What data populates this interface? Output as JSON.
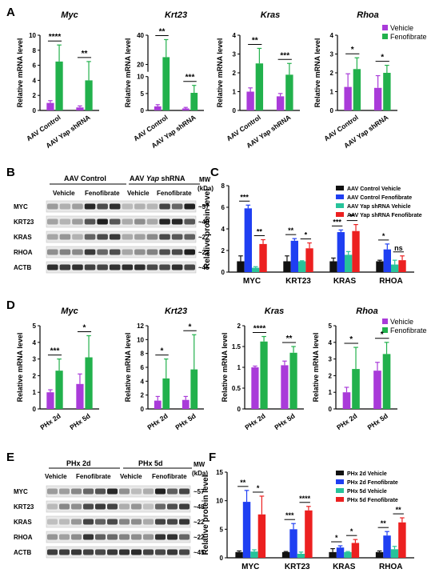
{
  "colors": {
    "vehicle": "#a93bd9",
    "fenofibrate": "#22b14c",
    "black": "#111111",
    "blue": "#1f3ff2",
    "teal": "#27c39a",
    "red": "#ec2020",
    "blot_bg": "#eeeeee"
  },
  "panels": {
    "A": "A",
    "B": "B",
    "C": "C",
    "D": "D",
    "E": "E",
    "F": "F"
  },
  "legend_A": {
    "vehicle": "Vehicle",
    "fenofibrate": "Fenofibrate"
  },
  "legend_D": {
    "vehicle": "Vehicle",
    "fenofibrate": "Fenofibrate"
  },
  "blot_B": {
    "group1": "AAV Control",
    "group2_pre": "AAV ",
    "group2_italic": "Yap",
    "group2_post": " shRNA",
    "lanes": [
      "Vehicle",
      "Fenofibrate",
      "Vehicle",
      "Fenofibrate"
    ],
    "mw": "MW",
    "kda": "(kDa)",
    "rows": [
      {
        "label": "MYC",
        "mw": "~57"
      },
      {
        "label": "KRT23",
        "mw": "~48"
      },
      {
        "label": "KRAS",
        "mw": "~22"
      },
      {
        "label": "RHOA",
        "mw": "~22"
      },
      {
        "label": "ACTB",
        "mw": "~45"
      }
    ]
  },
  "blot_E": {
    "group1": "PHx 2d",
    "group2": "PHx 5d",
    "lanes": [
      "Vehicle",
      "Fenofibrate",
      "Vehicle",
      "Fenofibrate"
    ],
    "mw": "MW",
    "kda": "(kDa)",
    "rows": [
      {
        "label": "MYC",
        "mw": "~57"
      },
      {
        "label": "KRT23",
        "mw": "~48"
      },
      {
        "label": "KRAS",
        "mw": "~22"
      },
      {
        "label": "RHOA",
        "mw": "~22"
      },
      {
        "label": "ACTB",
        "mw": "~45"
      }
    ]
  },
  "chart_data": [
    {
      "panel": "A",
      "type": "bar",
      "title": "Myc",
      "ylabel": "Relative mRNA level",
      "categories": [
        "AAV Control",
        "AAV Yap shRNA"
      ],
      "ylim": [
        0,
        10
      ],
      "yticks": [
        0,
        2,
        4,
        6,
        8,
        10
      ],
      "series": [
        {
          "name": "Vehicle",
          "values": [
            1.0,
            0.4
          ],
          "err": [
            0.3,
            0.2
          ]
        },
        {
          "name": "Fenofibrate",
          "values": [
            6.5,
            4.0
          ],
          "err": [
            2.2,
            2.5
          ]
        }
      ],
      "significance": [
        "****",
        "**"
      ]
    },
    {
      "panel": "A",
      "type": "bar",
      "title": "Krt23",
      "ylabel": "Relative mRNA level",
      "categories": [
        "AAV Control",
        "AAV Yap shRNA"
      ],
      "yticks": [
        0,
        5,
        10,
        20,
        40
      ],
      "axis_break": [
        10,
        15
      ],
      "series": [
        {
          "name": "Vehicle",
          "values": [
            1.2,
            0.6
          ],
          "err": [
            0.5,
            0.3
          ]
        },
        {
          "name": "Fenofibrate",
          "values": [
            25,
            5.2
          ],
          "err": [
            12,
            2.2
          ]
        }
      ],
      "significance": [
        "**",
        "***"
      ]
    },
    {
      "panel": "A",
      "type": "bar",
      "title": "Kras",
      "ylabel": "Relative mRNA level",
      "categories": [
        "AAV Control",
        "AAV Yap shRNA"
      ],
      "ylim": [
        0,
        4
      ],
      "yticks": [
        0,
        1,
        2,
        3,
        4
      ],
      "series": [
        {
          "name": "Vehicle",
          "values": [
            1.0,
            0.75
          ],
          "err": [
            0.2,
            0.15
          ]
        },
        {
          "name": "Fenofibrate",
          "values": [
            2.5,
            1.9
          ],
          "err": [
            0.8,
            0.6
          ]
        }
      ],
      "significance": [
        "**",
        "***"
      ]
    },
    {
      "panel": "A",
      "type": "bar",
      "title": "Rhoa",
      "ylabel": "Relative mRNA level",
      "categories": [
        "AAV Control",
        "AAV Yap shRNA"
      ],
      "ylim": [
        0,
        4
      ],
      "yticks": [
        0,
        1,
        2,
        3,
        4
      ],
      "series": [
        {
          "name": "Vehicle",
          "values": [
            1.25,
            1.2
          ],
          "err": [
            0.7,
            0.65
          ]
        },
        {
          "name": "Fenofibrate",
          "values": [
            2.2,
            2.0
          ],
          "err": [
            0.6,
            0.4
          ]
        }
      ],
      "significance": [
        "*",
        "*"
      ]
    },
    {
      "panel": "C",
      "type": "bar",
      "title": "",
      "ylabel": "Relative protein level",
      "categories": [
        "MYC",
        "KRT23",
        "KRAS",
        "RHOA"
      ],
      "ylim": [
        0,
        8
      ],
      "yticks": [
        0,
        2,
        4,
        6,
        8
      ],
      "series": [
        {
          "name": "AAV Control Vehicle",
          "values": [
            1.0,
            1.0,
            1.0,
            1.0
          ],
          "err": [
            0.5,
            0.5,
            0.3,
            0.1
          ]
        },
        {
          "name": "AAV Control Fenofibrate",
          "values": [
            5.9,
            2.9,
            3.7,
            2.1
          ],
          "err": [
            0.3,
            0.2,
            0.2,
            0.5
          ]
        },
        {
          "name": "AAV Yap shRNA Vehicle",
          "values": [
            0.4,
            1.0,
            1.6,
            0.7
          ],
          "err": [
            0.1,
            0.05,
            0.3,
            0.4
          ]
        },
        {
          "name": "AAV Yap shRNA Fenofibrate",
          "values": [
            2.6,
            2.2,
            3.8,
            1.1
          ],
          "err": [
            0.4,
            0.5,
            0.6,
            0.4
          ]
        }
      ],
      "significance": [
        [
          "***",
          "**"
        ],
        [
          "**",
          "*"
        ],
        [
          "***",
          "**"
        ],
        [
          "*",
          "ns"
        ]
      ]
    },
    {
      "panel": "D",
      "type": "bar",
      "title": "Myc",
      "ylabel": "Relative mRNA level",
      "categories": [
        "PHx 2d",
        "PHx 5d"
      ],
      "ylim": [
        0,
        5
      ],
      "yticks": [
        0,
        1,
        2,
        3,
        4,
        5
      ],
      "series": [
        {
          "name": "Vehicle",
          "values": [
            1.0,
            1.5
          ],
          "err": [
            0.15,
            0.6
          ]
        },
        {
          "name": "Fenofibrate",
          "values": [
            2.3,
            3.1
          ],
          "err": [
            0.7,
            1.3
          ]
        }
      ],
      "significance": [
        "***",
        "*"
      ]
    },
    {
      "panel": "D",
      "type": "bar",
      "title": "Krt23",
      "ylabel": "Relative mRNA level",
      "categories": [
        "PHx 2d",
        "PHx 5d"
      ],
      "ylim": [
        0,
        12
      ],
      "yticks": [
        0,
        2,
        4,
        6,
        8,
        10,
        12
      ],
      "series": [
        {
          "name": "Vehicle",
          "values": [
            1.2,
            1.3
          ],
          "err": [
            0.6,
            0.5
          ]
        },
        {
          "name": "Fenofibrate",
          "values": [
            4.4,
            5.7
          ],
          "err": [
            2.8,
            5.0
          ]
        }
      ],
      "significance": [
        "*",
        "*"
      ]
    },
    {
      "panel": "D",
      "type": "bar",
      "title": "Kras",
      "ylabel": "Relative mRNA level",
      "categories": [
        "PHx 2d",
        "PHx 5d"
      ],
      "ylim": [
        0,
        2.0
      ],
      "yticks": [
        0,
        0.5,
        1.0,
        1.5,
        2.0
      ],
      "series": [
        {
          "name": "Vehicle",
          "values": [
            1.0,
            1.05
          ],
          "err": [
            0.03,
            0.1
          ]
        },
        {
          "name": "Fenofibrate",
          "values": [
            1.62,
            1.35
          ],
          "err": [
            0.12,
            0.15
          ]
        }
      ],
      "significance": [
        "****",
        "**"
      ]
    },
    {
      "panel": "D",
      "type": "bar",
      "title": "Rhoa",
      "ylabel": "Relative mRNA level",
      "categories": [
        "PHx 2d",
        "PHx 5d"
      ],
      "ylim": [
        0,
        5
      ],
      "yticks": [
        0,
        1,
        2,
        3,
        4,
        5
      ],
      "series": [
        {
          "name": "Vehicle",
          "values": [
            1.0,
            2.3
          ],
          "err": [
            0.3,
            0.5
          ]
        },
        {
          "name": "Fenofibrate",
          "values": [
            2.4,
            3.3
          ],
          "err": [
            1.3,
            0.7
          ]
        }
      ],
      "significance": [
        "*",
        "*"
      ]
    },
    {
      "panel": "F",
      "type": "bar",
      "title": "",
      "ylabel": "Relative protein level",
      "categories": [
        "MYC",
        "KRT23",
        "KRAS",
        "RHOA"
      ],
      "ylim": [
        0,
        15
      ],
      "yticks": [
        0,
        5,
        10,
        15
      ],
      "series": [
        {
          "name": "PHx 2d Vehicle",
          "values": [
            1.0,
            1.0,
            1.0,
            1.0
          ],
          "err": [
            0.2,
            0.1,
            0.6,
            0.2
          ]
        },
        {
          "name": "PHx 2d Fenofibrate",
          "values": [
            9.8,
            5.0,
            1.8,
            3.9
          ],
          "err": [
            2.0,
            1.0,
            0.3,
            0.7
          ]
        },
        {
          "name": "PHx 5d Vehicle",
          "values": [
            1.1,
            0.7,
            1.0,
            1.5
          ],
          "err": [
            0.3,
            0.3,
            0.1,
            0.5
          ]
        },
        {
          "name": "PHx 5d Fenofibrate",
          "values": [
            7.6,
            8.3,
            2.6,
            6.2
          ],
          "err": [
            3.2,
            0.7,
            0.6,
            0.8
          ]
        }
      ],
      "significance": [
        [
          "**",
          "*"
        ],
        [
          "***",
          "****"
        ],
        [
          "*",
          "*"
        ],
        [
          "**",
          "**"
        ]
      ]
    }
  ]
}
